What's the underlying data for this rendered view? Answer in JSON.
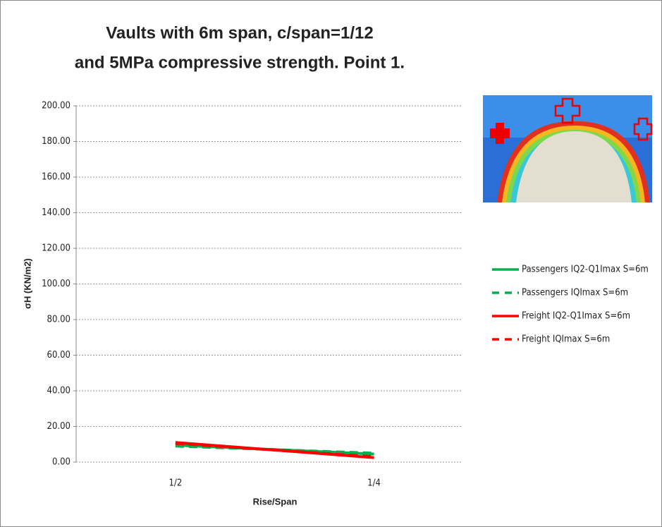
{
  "chart_data": {
    "type": "line",
    "title": [
      "Vaults with 6m span,  c/span=1/12",
      "and 5MPa compressive strength. Point 1."
    ],
    "y_label": "σH (KN/m2)",
    "x_label": "Rise/Span",
    "categories": [
      "1/2",
      "1/4"
    ],
    "series": [
      {
        "name": "Passengers IQ2-Q1Imax S=6m",
        "color": "#00b050",
        "dash": false,
        "values": [
          9.5,
          4.5
        ]
      },
      {
        "name": "Passengers IQImax S=6m",
        "color": "#00b050",
        "dash": true,
        "values": [
          9,
          5
        ]
      },
      {
        "name": "Freight IQ2-Q1Imax S=6m",
        "color": "#ff0000",
        "dash": false,
        "values": [
          11,
          2.5
        ]
      },
      {
        "name": "Freight IQImax S=6m",
        "color": "#ff0000",
        "dash": true,
        "values": [
          10.5,
          3
        ]
      }
    ],
    "ylim": [
      0,
      200
    ],
    "yticks": [
      {
        "value": 0,
        "label": "0.00"
      },
      {
        "value": 20,
        "label": "20.00"
      },
      {
        "value": 40,
        "label": "40.00"
      },
      {
        "value": 60,
        "label": "60.00"
      },
      {
        "value": 80,
        "label": "80.00"
      },
      {
        "value": 100,
        "label": "100.00"
      },
      {
        "value": 120,
        "label": "120.00"
      },
      {
        "value": 140,
        "label": "140.00"
      },
      {
        "value": 160,
        "label": "160.00"
      },
      {
        "value": 180,
        "label": "180.00"
      },
      {
        "value": 200,
        "label": "200.00"
      }
    ],
    "grid": true,
    "legend": "right"
  }
}
